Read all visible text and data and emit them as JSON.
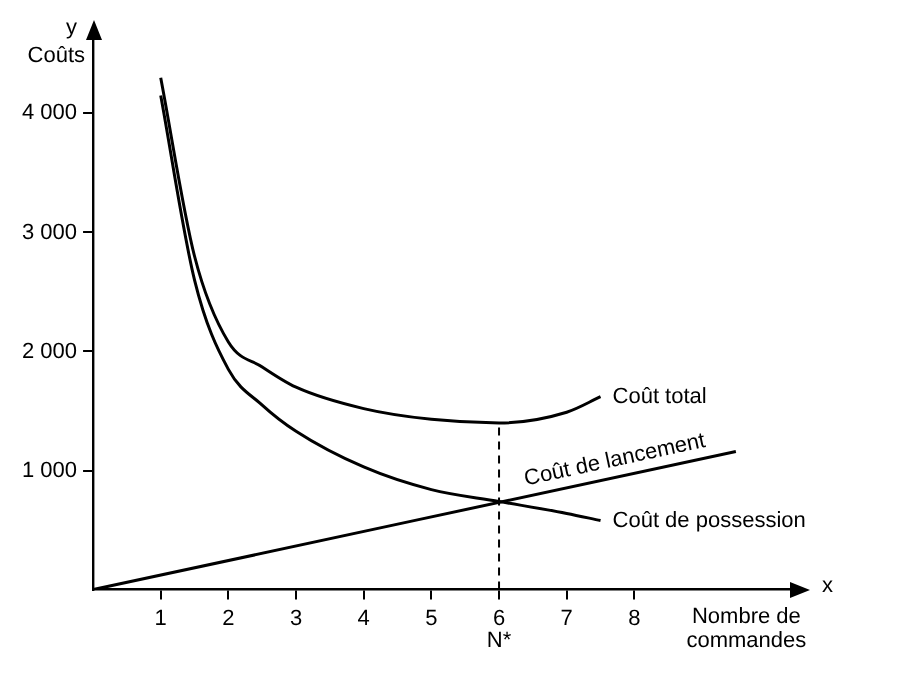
{
  "chart_data": {
    "type": "line",
    "ylabel": "Coûts",
    "xlabel": "Nombre de commandes",
    "annotations": [
      "y",
      "x"
    ],
    "xlim": [
      0,
      10.3
    ],
    "xticks": [
      1,
      2,
      3,
      4,
      5,
      6,
      7,
      8
    ],
    "ylim": [
      0,
      4650
    ],
    "yticks": [
      {
        "value": 1000,
        "label": "1 000"
      },
      {
        "value": 2000,
        "label": "2 000"
      },
      {
        "value": 3000,
        "label": "3 000"
      },
      {
        "value": 4000,
        "label": "4 000"
      }
    ],
    "grid": false,
    "legend": false,
    "marker": "none",
    "line_style": "solid",
    "ref_lines": [
      {
        "axis": "x",
        "value": 6,
        "label": "N*",
        "line_style": "dashed"
      }
    ],
    "series": [
      {
        "name": "Coût total",
        "color": "#000000",
        "x": [
          1,
          1.5,
          2,
          2.5,
          3,
          4,
          5,
          6,
          7,
          7.5
        ],
        "values": [
          4300,
          2800,
          2080,
          1870,
          1700,
          1520,
          1430,
          1400,
          1490,
          1620
        ]
      },
      {
        "name": "Coût de lancement",
        "color": "#000000",
        "x": [
          0,
          9.5
        ],
        "values": [
          0,
          1160
        ]
      },
      {
        "name": "Coût de possession",
        "color": "#000000",
        "x": [
          1,
          1.5,
          2,
          2.5,
          3,
          4,
          5,
          6,
          7,
          7.5
        ],
        "values": [
          4150,
          2600,
          1850,
          1550,
          1330,
          1030,
          840,
          740,
          640,
          580
        ]
      }
    ]
  }
}
